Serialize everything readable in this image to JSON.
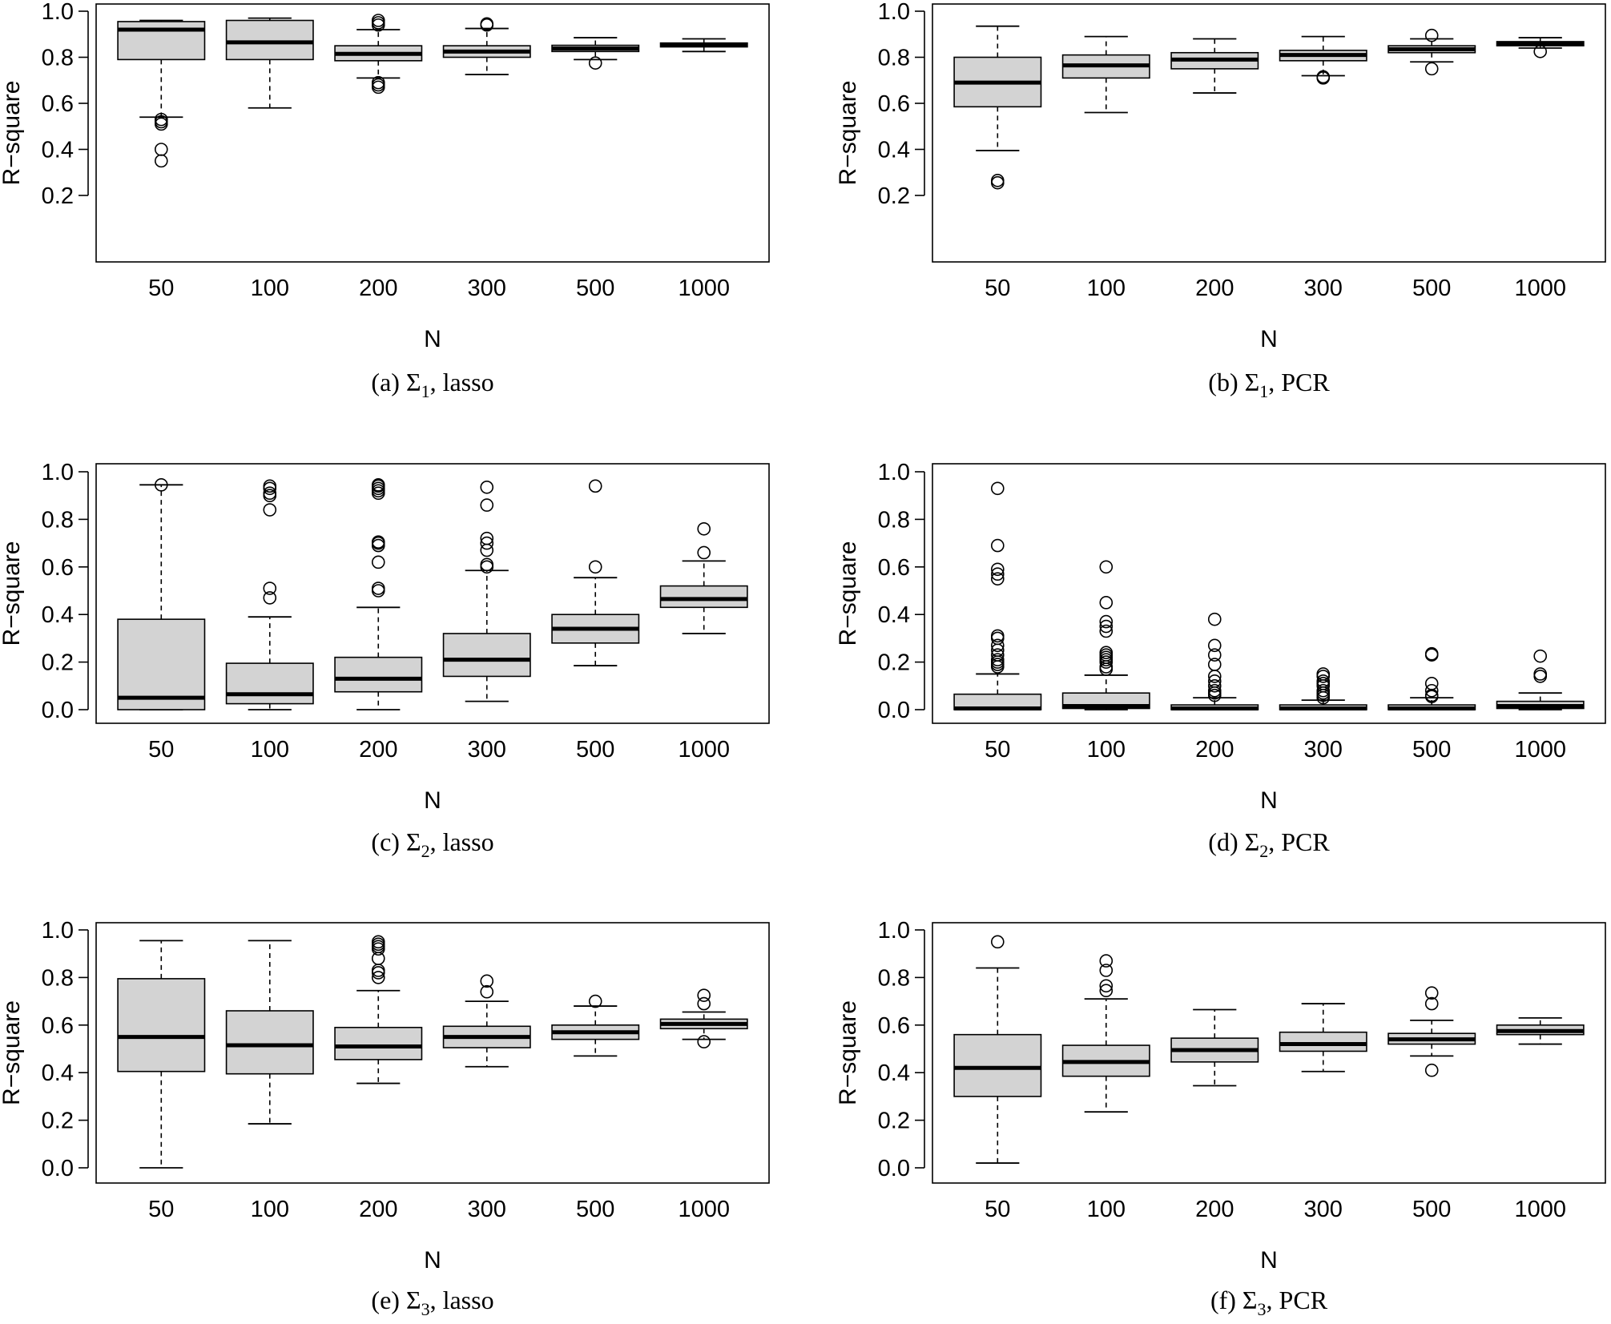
{
  "chart_data": [
    {
      "type": "box",
      "panel": "a",
      "caption": {
        "label": "(a)",
        "sym": "Σ",
        "sub": "1",
        "method": "lasso"
      },
      "xlabel": "N",
      "ylabel": "R−square",
      "categories": [
        "50",
        "100",
        "200",
        "300",
        "500",
        "1000"
      ],
      "ylim": [
        0.2,
        1.0
      ],
      "yticks": [
        "0.2",
        "0.4",
        "0.6",
        "0.8",
        "1.0"
      ],
      "boxes": [
        {
          "whislo": 0.54,
          "q1": 0.79,
          "med": 0.92,
          "q3": 0.955,
          "whishi": 0.96,
          "outliers": [
            0.53,
            0.52,
            0.51,
            0.4,
            0.35
          ]
        },
        {
          "whislo": 0.58,
          "q1": 0.79,
          "med": 0.865,
          "q3": 0.96,
          "whishi": 0.97,
          "outliers": []
        },
        {
          "whislo": 0.71,
          "q1": 0.785,
          "med": 0.815,
          "q3": 0.85,
          "whishi": 0.92,
          "outliers": [
            0.96,
            0.95,
            0.94,
            0.69,
            0.68,
            0.67
          ]
        },
        {
          "whislo": 0.725,
          "q1": 0.8,
          "med": 0.825,
          "q3": 0.85,
          "whishi": 0.925,
          "outliers": [
            0.945,
            0.94
          ]
        },
        {
          "whislo": 0.79,
          "q1": 0.825,
          "med": 0.838,
          "q3": 0.852,
          "whishi": 0.885,
          "outliers": [
            0.775
          ]
        },
        {
          "whislo": 0.825,
          "q1": 0.845,
          "med": 0.852,
          "q3": 0.862,
          "whishi": 0.88,
          "outliers": []
        }
      ]
    },
    {
      "type": "box",
      "panel": "b",
      "caption": {
        "label": "(b)",
        "sym": "Σ",
        "sub": "1",
        "method": "PCR"
      },
      "xlabel": "N",
      "ylabel": "R−square",
      "categories": [
        "50",
        "100",
        "200",
        "300",
        "500",
        "1000"
      ],
      "ylim": [
        0.2,
        1.0
      ],
      "yticks": [
        "0.2",
        "0.4",
        "0.6",
        "0.8",
        "1.0"
      ],
      "boxes": [
        {
          "whislo": 0.395,
          "q1": 0.585,
          "med": 0.69,
          "q3": 0.8,
          "whishi": 0.935,
          "outliers": [
            0.265,
            0.255
          ]
        },
        {
          "whislo": 0.56,
          "q1": 0.71,
          "med": 0.765,
          "q3": 0.81,
          "whishi": 0.89,
          "outliers": []
        },
        {
          "whislo": 0.645,
          "q1": 0.75,
          "med": 0.79,
          "q3": 0.82,
          "whishi": 0.88,
          "outliers": []
        },
        {
          "whislo": 0.72,
          "q1": 0.785,
          "med": 0.81,
          "q3": 0.83,
          "whishi": 0.89,
          "outliers": [
            0.715,
            0.71
          ]
        },
        {
          "whislo": 0.78,
          "q1": 0.82,
          "med": 0.835,
          "q3": 0.85,
          "whishi": 0.88,
          "outliers": [
            0.895,
            0.75
          ]
        },
        {
          "whislo": 0.84,
          "q1": 0.85,
          "med": 0.86,
          "q3": 0.868,
          "whishi": 0.885,
          "outliers": [
            0.825
          ]
        }
      ]
    },
    {
      "type": "box",
      "panel": "c",
      "caption": {
        "label": "(c)",
        "sym": "Σ",
        "sub": "2",
        "method": "lasso"
      },
      "xlabel": "N",
      "ylabel": "R−square",
      "categories": [
        "50",
        "100",
        "200",
        "300",
        "500",
        "1000"
      ],
      "ylim": [
        0.0,
        1.0
      ],
      "yticks": [
        "0.0",
        "0.2",
        "0.4",
        "0.6",
        "0.8",
        "1.0"
      ],
      "boxes": [
        {
          "whislo": 0.0,
          "q1": 0.0,
          "med": 0.05,
          "q3": 0.38,
          "whishi": 0.945,
          "outliers": [
            0.945
          ]
        },
        {
          "whislo": 0.0,
          "q1": 0.025,
          "med": 0.065,
          "q3": 0.195,
          "whishi": 0.39,
          "outliers": [
            0.94,
            0.93,
            0.91,
            0.9,
            0.84,
            0.51,
            0.47
          ]
        },
        {
          "whislo": 0.0,
          "q1": 0.075,
          "med": 0.13,
          "q3": 0.22,
          "whishi": 0.43,
          "outliers": [
            0.945,
            0.94,
            0.93,
            0.92,
            0.91,
            0.705,
            0.7,
            0.69,
            0.62,
            0.51,
            0.5
          ]
        },
        {
          "whislo": 0.035,
          "q1": 0.14,
          "med": 0.21,
          "q3": 0.32,
          "whishi": 0.585,
          "outliers": [
            0.935,
            0.86,
            0.72,
            0.7,
            0.67,
            0.61,
            0.6
          ]
        },
        {
          "whislo": 0.185,
          "q1": 0.28,
          "med": 0.34,
          "q3": 0.4,
          "whishi": 0.555,
          "outliers": [
            0.94,
            0.6
          ]
        },
        {
          "whislo": 0.32,
          "q1": 0.43,
          "med": 0.465,
          "q3": 0.52,
          "whishi": 0.625,
          "outliers": [
            0.76,
            0.66
          ]
        }
      ]
    },
    {
      "type": "box",
      "panel": "d",
      "caption": {
        "label": "(d)",
        "sym": "Σ",
        "sub": "2",
        "method": "PCR"
      },
      "xlabel": "N",
      "ylabel": "R−square",
      "categories": [
        "50",
        "100",
        "200",
        "300",
        "500",
        "1000"
      ],
      "ylim": [
        0.0,
        1.0
      ],
      "yticks": [
        "0.0",
        "0.2",
        "0.4",
        "0.6",
        "0.8",
        "1.0"
      ],
      "boxes": [
        {
          "whislo": 0.0,
          "q1": 0.0,
          "med": 0.005,
          "q3": 0.065,
          "whishi": 0.15,
          "outliers": [
            0.93,
            0.69,
            0.59,
            0.57,
            0.55,
            0.31,
            0.3,
            0.27,
            0.25,
            0.23,
            0.21,
            0.2,
            0.19,
            0.18
          ]
        },
        {
          "whislo": 0.0,
          "q1": 0.005,
          "med": 0.015,
          "q3": 0.07,
          "whishi": 0.145,
          "outliers": [
            0.6,
            0.45,
            0.37,
            0.35,
            0.33,
            0.24,
            0.23,
            0.22,
            0.21,
            0.2,
            0.18,
            0.17
          ]
        },
        {
          "whislo": 0.0,
          "q1": 0.0,
          "med": 0.005,
          "q3": 0.02,
          "whishi": 0.05,
          "outliers": [
            0.38,
            0.27,
            0.23,
            0.19,
            0.14,
            0.12,
            0.1,
            0.08,
            0.07,
            0.06
          ]
        },
        {
          "whislo": 0.0,
          "q1": 0.0,
          "med": 0.005,
          "q3": 0.02,
          "whishi": 0.04,
          "outliers": [
            0.15,
            0.14,
            0.12,
            0.11,
            0.1,
            0.08,
            0.07,
            0.06,
            0.05
          ]
        },
        {
          "whislo": 0.0,
          "q1": 0.0,
          "med": 0.005,
          "q3": 0.02,
          "whishi": 0.05,
          "outliers": [
            0.235,
            0.23,
            0.11,
            0.08,
            0.06,
            0.055
          ]
        },
        {
          "whislo": 0.0,
          "q1": 0.005,
          "med": 0.015,
          "q3": 0.035,
          "whishi": 0.07,
          "outliers": [
            0.225,
            0.15,
            0.14
          ]
        }
      ]
    },
    {
      "type": "box",
      "panel": "e",
      "caption": {
        "label": "(e)",
        "sym": "Σ",
        "sub": "3",
        "method": "lasso"
      },
      "xlabel": "N",
      "ylabel": "R−square",
      "categories": [
        "50",
        "100",
        "200",
        "300",
        "500",
        "1000"
      ],
      "ylim": [
        0.0,
        1.0
      ],
      "yticks": [
        "0.0",
        "0.2",
        "0.4",
        "0.6",
        "0.8",
        "1.0"
      ],
      "boxes": [
        {
          "whislo": 0.0,
          "q1": 0.405,
          "med": 0.55,
          "q3": 0.795,
          "whishi": 0.955,
          "outliers": []
        },
        {
          "whislo": 0.185,
          "q1": 0.395,
          "med": 0.515,
          "q3": 0.66,
          "whishi": 0.955,
          "outliers": []
        },
        {
          "whislo": 0.355,
          "q1": 0.455,
          "med": 0.51,
          "q3": 0.59,
          "whishi": 0.745,
          "outliers": [
            0.95,
            0.94,
            0.93,
            0.92,
            0.88,
            0.83,
            0.82,
            0.8
          ]
        },
        {
          "whislo": 0.425,
          "q1": 0.505,
          "med": 0.55,
          "q3": 0.595,
          "whishi": 0.7,
          "outliers": [
            0.785,
            0.74
          ]
        },
        {
          "whislo": 0.47,
          "q1": 0.54,
          "med": 0.57,
          "q3": 0.6,
          "whishi": 0.68,
          "outliers": [
            0.7
          ]
        },
        {
          "whislo": 0.54,
          "q1": 0.585,
          "med": 0.605,
          "q3": 0.625,
          "whishi": 0.655,
          "outliers": [
            0.725,
            0.69,
            0.53
          ]
        }
      ]
    },
    {
      "type": "box",
      "panel": "f",
      "caption": {
        "label": "(f)",
        "sym": "Σ",
        "sub": "3",
        "method": "PCR"
      },
      "xlabel": "N",
      "ylabel": "R−square",
      "categories": [
        "50",
        "100",
        "200",
        "300",
        "500",
        "1000"
      ],
      "ylim": [
        0.0,
        1.0
      ],
      "yticks": [
        "0.0",
        "0.2",
        "0.4",
        "0.6",
        "0.8",
        "1.0"
      ],
      "boxes": [
        {
          "whislo": 0.02,
          "q1": 0.3,
          "med": 0.42,
          "q3": 0.56,
          "whishi": 0.84,
          "outliers": [
            0.95
          ]
        },
        {
          "whislo": 0.235,
          "q1": 0.385,
          "med": 0.445,
          "q3": 0.515,
          "whishi": 0.71,
          "outliers": [
            0.87,
            0.83,
            0.765,
            0.745
          ]
        },
        {
          "whislo": 0.345,
          "q1": 0.445,
          "med": 0.495,
          "q3": 0.545,
          "whishi": 0.665,
          "outliers": []
        },
        {
          "whislo": 0.405,
          "q1": 0.49,
          "med": 0.52,
          "q3": 0.57,
          "whishi": 0.69,
          "outliers": []
        },
        {
          "whislo": 0.47,
          "q1": 0.52,
          "med": 0.54,
          "q3": 0.565,
          "whishi": 0.62,
          "outliers": [
            0.735,
            0.69,
            0.41
          ]
        },
        {
          "whislo": 0.52,
          "q1": 0.56,
          "med": 0.575,
          "q3": 0.6,
          "whishi": 0.63,
          "outliers": []
        }
      ]
    }
  ]
}
